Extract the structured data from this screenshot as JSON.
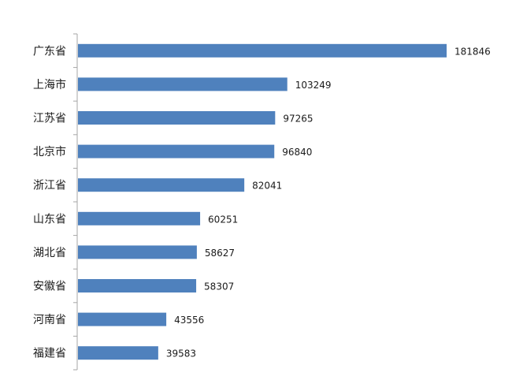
{
  "chart_data": {
    "type": "bar",
    "orientation": "horizontal",
    "categories": [
      "广东省",
      "上海市",
      "江苏省",
      "北京市",
      "浙江省",
      "山东省",
      "湖北省",
      "安徽省",
      "河南省",
      "福建省"
    ],
    "values": [
      181846,
      103249,
      97265,
      96840,
      82041,
      60251,
      58627,
      58307,
      43556,
      39583
    ],
    "data_labels": [
      "181846",
      "103249",
      "97265",
      "96840",
      "82041",
      "60251",
      "58627",
      "58307",
      "43556",
      "39583"
    ],
    "title": "",
    "xlabel": "",
    "ylabel": "",
    "xlim": [
      0,
      181846
    ],
    "grid": false,
    "legend": "none",
    "bar_color": "#4f81bd",
    "axis_color": "#a6a6a6"
  }
}
